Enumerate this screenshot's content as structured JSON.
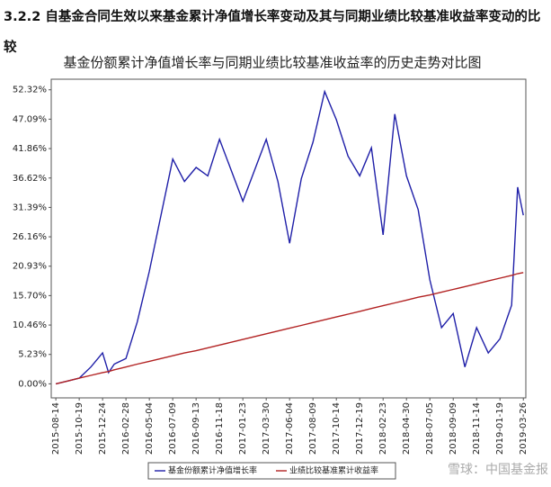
{
  "heading": "3.2.2 自基金合同生效以来基金累计净值增长率变动及其与同期业绩比较基准收益率变动的比较",
  "watermark": "雪球：中国基金报",
  "chart_data": {
    "type": "line",
    "title": "基金份额累计净值增长率与同期业绩比较基准收益率的历史走势对比图",
    "x": [
      "2015-08-14",
      "2015-09-16",
      "2015-10-19",
      "2015-11-21",
      "2015-12-24",
      "2016-01-10",
      "2016-01-26",
      "2016-02-28",
      "2016-03-31",
      "2016-05-04",
      "2016-06-06",
      "2016-07-09",
      "2016-08-11",
      "2016-09-13",
      "2016-10-16",
      "2016-11-18",
      "2016-12-21",
      "2017-01-23",
      "2017-02-25",
      "2017-03-30",
      "2017-05-02",
      "2017-06-04",
      "2017-07-07",
      "2017-08-09",
      "2017-09-11",
      "2017-10-14",
      "2017-11-16",
      "2017-12-19",
      "2018-01-21",
      "2018-02-23",
      "2018-03-28",
      "2018-04-30",
      "2018-06-02",
      "2018-07-05",
      "2018-08-07",
      "2018-09-09",
      "2018-10-12",
      "2018-11-14",
      "2018-12-17",
      "2019-01-19",
      "2019-02-21",
      "2019-03-10",
      "2019-03-26"
    ],
    "series": [
      {
        "name": "基金份额累计净值增长率",
        "color": "#1f1fa8",
        "values": [
          0,
          0.5,
          1.0,
          3.0,
          5.5,
          2.0,
          3.5,
          4.5,
          11.0,
          20.0,
          30.0,
          40.0,
          36.0,
          38.5,
          37.0,
          43.5,
          38.0,
          32.5,
          38.0,
          43.5,
          36.0,
          25.0,
          36.5,
          43.0,
          52.0,
          47.0,
          40.5,
          37.0,
          42.0,
          26.5,
          48.0,
          37.0,
          31.0,
          18.5,
          10.0,
          12.5,
          3.0,
          10.0,
          5.5,
          8.0,
          14.0,
          35.0,
          30.0
        ]
      },
      {
        "name": "业绩比较基准累计收益率",
        "color": "#b22222",
        "values": [
          0,
          0.5,
          1.0,
          1.5,
          2.0,
          2.2,
          2.5,
          3.0,
          3.5,
          4.0,
          4.5,
          5.0,
          5.5,
          5.9,
          6.4,
          6.9,
          7.4,
          7.9,
          8.4,
          8.9,
          9.4,
          9.9,
          10.4,
          10.9,
          11.4,
          11.9,
          12.4,
          12.9,
          13.4,
          13.9,
          14.4,
          14.9,
          15.4,
          15.8,
          16.3,
          16.8,
          17.3,
          17.8,
          18.3,
          18.8,
          19.3,
          19.6,
          19.8
        ]
      }
    ],
    "xlim": [
      "2015-08-01",
      "2019-04-02"
    ],
    "xticks": [
      "2015-08-14",
      "2015-10-19",
      "2015-12-24",
      "2016-02-28",
      "2016-05-04",
      "2016-07-09",
      "2016-09-13",
      "2016-11-18",
      "2017-01-23",
      "2017-03-30",
      "2017-06-04",
      "2017-08-09",
      "2017-10-14",
      "2017-12-19",
      "2018-02-23",
      "2018-04-30",
      "2018-07-05",
      "2018-09-09",
      "2018-11-14",
      "2019-01-19",
      "2019-03-26"
    ],
    "ylim": [
      -2.5,
      54.2
    ],
    "yticks": [
      {
        "value": 0,
        "label": "0.00%"
      },
      {
        "value": 5.23,
        "label": "5.23%"
      },
      {
        "value": 10.46,
        "label": "10.46%"
      },
      {
        "value": 15.7,
        "label": "15.70%"
      },
      {
        "value": 20.93,
        "label": "20.93%"
      },
      {
        "value": 26.16,
        "label": "26.16%"
      },
      {
        "value": 31.39,
        "label": "31.39%"
      },
      {
        "value": 36.62,
        "label": "36.62%"
      },
      {
        "value": 41.86,
        "label": "41.86%"
      },
      {
        "value": 47.09,
        "label": "47.09%"
      },
      {
        "value": 52.32,
        "label": "52.32%"
      }
    ],
    "grid": false
  }
}
